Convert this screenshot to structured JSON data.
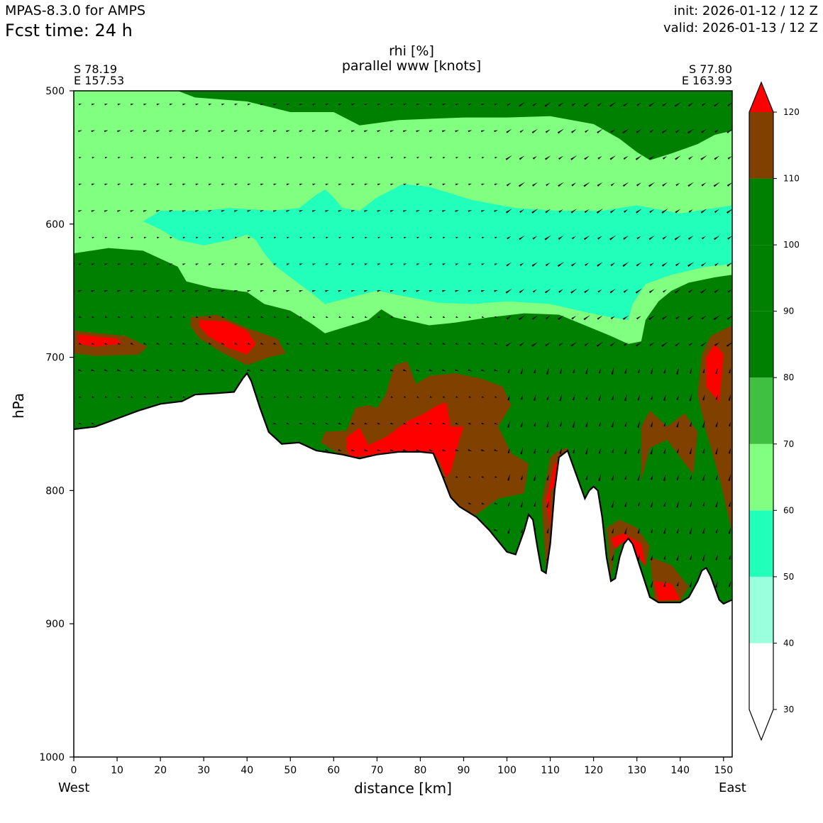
{
  "header": {
    "model": "MPAS-8.3.0 for AMPS",
    "fcst_time": "Fcst time:   24 h",
    "init": "init: 2026-01-12 / 12 Z",
    "valid": "valid: 2026-01-13 / 12 Z"
  },
  "locations": {
    "left_lat": "S 78.19",
    "left_lon": "E 157.53",
    "right_lat": "S 77.80",
    "right_lon": "E 163.93"
  },
  "sides": {
    "west": "West",
    "east": "East"
  },
  "chart_data": {
    "type": "heatmap",
    "title": "rhi [%]",
    "subtitle": "parallel www [knots]",
    "xlabel": "distance [km]",
    "ylabel": "hPa",
    "xlim": [
      0,
      152
    ],
    "ylim": [
      1000,
      500
    ],
    "y_inverted": true,
    "x_ticks": [
      0,
      10,
      20,
      30,
      40,
      50,
      60,
      70,
      80,
      90,
      100,
      110,
      120,
      130,
      140,
      150
    ],
    "y_ticks": [
      500,
      600,
      700,
      800,
      900,
      1000
    ],
    "grid": false,
    "colorbar": {
      "levels": [
        30,
        40,
        50,
        60,
        70,
        80,
        90,
        100,
        110,
        120
      ],
      "bins": [
        {
          "range": [
            30,
            40
          ],
          "color": "#ffffff"
        },
        {
          "range": [
            40,
            50
          ],
          "color": "#99ffdd"
        },
        {
          "range": [
            50,
            60
          ],
          "color": "#22ffbb"
        },
        {
          "range": [
            60,
            70
          ],
          "color": "#80ff80"
        },
        {
          "range": [
            70,
            80
          ],
          "color": "#40c040"
        },
        {
          "range": [
            80,
            110
          ],
          "color": "#008000"
        },
        {
          "range": [
            110,
            120
          ],
          "color": "#804000"
        },
        {
          "range": [
            120,
            130
          ],
          "color": "#ff0000"
        }
      ],
      "extend": "both"
    },
    "terrain_pressure": [
      [
        0,
        754
      ],
      [
        5,
        752
      ],
      [
        10,
        746
      ],
      [
        15,
        740
      ],
      [
        20,
        735
      ],
      [
        25,
        733
      ],
      [
        28,
        728
      ],
      [
        33,
        727
      ],
      [
        37,
        726
      ],
      [
        39,
        716
      ],
      [
        40,
        712
      ],
      [
        41,
        718
      ],
      [
        43,
        738
      ],
      [
        45,
        756
      ],
      [
        48,
        765
      ],
      [
        52,
        764
      ],
      [
        56,
        770
      ],
      [
        62,
        773
      ],
      [
        66,
        776
      ],
      [
        70,
        773
      ],
      [
        75,
        771
      ],
      [
        80,
        771
      ],
      [
        83,
        772
      ],
      [
        85,
        788
      ],
      [
        87,
        805
      ],
      [
        89,
        812
      ],
      [
        93,
        820
      ],
      [
        96,
        830
      ],
      [
        100,
        846
      ],
      [
        102,
        848
      ],
      [
        104,
        830
      ],
      [
        105,
        818
      ],
      [
        106,
        822
      ],
      [
        107,
        842
      ],
      [
        108,
        860
      ],
      [
        109,
        862
      ],
      [
        110,
        840
      ],
      [
        111,
        800
      ],
      [
        112,
        775
      ],
      [
        114,
        770
      ],
      [
        116,
        788
      ],
      [
        118,
        806
      ],
      [
        119,
        800
      ],
      [
        120,
        797
      ],
      [
        121,
        800
      ],
      [
        122,
        820
      ],
      [
        123,
        850
      ],
      [
        124,
        868
      ],
      [
        125,
        866
      ],
      [
        126,
        850
      ],
      [
        127,
        840
      ],
      [
        128,
        836
      ],
      [
        129,
        840
      ],
      [
        131,
        860
      ],
      [
        133,
        880
      ],
      [
        135,
        884
      ],
      [
        140,
        884
      ],
      [
        142,
        880
      ],
      [
        144,
        868
      ],
      [
        145,
        860
      ],
      [
        146,
        858
      ],
      [
        147,
        864
      ],
      [
        149,
        882
      ],
      [
        150,
        885
      ],
      [
        152,
        882
      ]
    ],
    "rhi_regions": [
      {
        "value": 60,
        "points": [
          [
            0,
            500
          ],
          [
            24,
            500
          ],
          [
            28,
            505
          ],
          [
            40,
            508
          ],
          [
            50,
            516
          ],
          [
            60,
            516
          ],
          [
            66,
            526
          ],
          [
            75,
            522
          ],
          [
            90,
            520
          ],
          [
            100,
            520
          ],
          [
            110,
            519
          ],
          [
            120,
            525
          ],
          [
            126,
            536
          ],
          [
            130,
            546
          ],
          [
            133,
            552
          ],
          [
            138,
            547
          ],
          [
            144,
            540
          ],
          [
            148,
            533
          ],
          [
            152,
            530
          ],
          [
            152,
            638
          ],
          [
            148,
            640
          ],
          [
            142,
            644
          ],
          [
            138,
            650
          ],
          [
            135,
            658
          ],
          [
            132,
            672
          ],
          [
            131,
            688
          ],
          [
            128,
            690
          ],
          [
            124,
            684
          ],
          [
            118,
            676
          ],
          [
            112,
            668
          ],
          [
            104,
            667
          ],
          [
            96,
            670
          ],
          [
            88,
            674
          ],
          [
            82,
            676
          ],
          [
            74,
            670
          ],
          [
            71,
            664
          ],
          [
            68,
            672
          ],
          [
            62,
            678
          ],
          [
            58,
            682
          ],
          [
            55,
            675
          ],
          [
            50,
            665
          ],
          [
            44,
            660
          ],
          [
            40,
            651
          ],
          [
            32,
            648
          ],
          [
            26,
            643
          ],
          [
            24,
            632
          ],
          [
            16,
            620
          ],
          [
            8,
            618
          ],
          [
            0,
            622
          ]
        ]
      },
      {
        "value": 50,
        "points": [
          [
            16,
            598
          ],
          [
            20,
            590
          ],
          [
            30,
            590
          ],
          [
            36,
            588
          ],
          [
            46,
            590
          ],
          [
            52,
            588
          ],
          [
            56,
            578
          ],
          [
            58,
            574
          ],
          [
            60,
            580
          ],
          [
            62,
            588
          ],
          [
            66,
            590
          ],
          [
            70,
            580
          ],
          [
            76,
            570
          ],
          [
            82,
            572
          ],
          [
            92,
            582
          ],
          [
            102,
            588
          ],
          [
            112,
            590
          ],
          [
            122,
            590
          ],
          [
            130,
            586
          ],
          [
            140,
            592
          ],
          [
            148,
            588
          ],
          [
            152,
            586
          ],
          [
            152,
            630
          ],
          [
            146,
            632
          ],
          [
            138,
            638
          ],
          [
            132,
            645
          ],
          [
            129,
            660
          ],
          [
            128,
            672
          ],
          [
            124,
            670
          ],
          [
            118,
            666
          ],
          [
            110,
            660
          ],
          [
            100,
            658
          ],
          [
            92,
            660
          ],
          [
            84,
            659
          ],
          [
            76,
            654
          ],
          [
            70,
            650
          ],
          [
            64,
            655
          ],
          [
            58,
            660
          ],
          [
            55,
            652
          ],
          [
            50,
            640
          ],
          [
            46,
            630
          ],
          [
            44,
            622
          ],
          [
            42,
            612
          ],
          [
            40,
            608
          ],
          [
            36,
            612
          ],
          [
            30,
            616
          ],
          [
            24,
            612
          ],
          [
            20,
            604
          ]
        ]
      },
      {
        "value": 110,
        "points": [
          [
            0,
            680
          ],
          [
            12,
            684
          ],
          [
            17,
            692
          ],
          [
            15,
            698
          ],
          [
            5,
            699
          ],
          [
            0,
            697
          ]
        ]
      },
      {
        "value": 120,
        "points": [
          [
            1,
            683
          ],
          [
            10,
            686
          ],
          [
            11,
            690
          ],
          [
            5,
            692
          ],
          [
            1,
            690
          ]
        ]
      },
      {
        "value": 110,
        "points": [
          [
            27,
            670
          ],
          [
            33,
            668
          ],
          [
            40,
            678
          ],
          [
            47,
            686
          ],
          [
            49,
            697
          ],
          [
            45,
            700
          ],
          [
            40,
            706
          ],
          [
            34,
            696
          ],
          [
            29,
            686
          ],
          [
            27,
            677
          ]
        ]
      },
      {
        "value": 120,
        "points": [
          [
            29,
            672
          ],
          [
            35,
            673
          ],
          [
            40,
            680
          ],
          [
            42,
            690
          ],
          [
            40,
            698
          ],
          [
            35,
            692
          ],
          [
            31,
            684
          ],
          [
            29,
            677
          ]
        ]
      },
      {
        "value": 110,
        "points": [
          [
            58,
            756
          ],
          [
            63,
            755
          ],
          [
            65,
            738
          ],
          [
            68,
            736
          ],
          [
            70,
            738
          ],
          [
            72,
            728
          ],
          [
            74,
            706
          ],
          [
            77,
            703
          ],
          [
            79,
            720
          ],
          [
            82,
            714
          ],
          [
            88,
            712
          ],
          [
            94,
            716
          ],
          [
            99,
            722
          ],
          [
            101,
            736
          ],
          [
            98,
            752
          ],
          [
            101,
            772
          ],
          [
            105,
            780
          ],
          [
            104,
            802
          ],
          [
            98,
            806
          ],
          [
            93,
            818
          ],
          [
            88,
            818
          ],
          [
            86,
            805
          ],
          [
            84,
            792
          ],
          [
            82,
            772
          ],
          [
            80,
            772
          ],
          [
            72,
            772
          ],
          [
            64,
            776
          ],
          [
            60,
            770
          ],
          [
            57,
            764
          ]
        ]
      },
      {
        "value": 120,
        "points": [
          [
            63,
            760
          ],
          [
            66,
            753
          ],
          [
            68,
            766
          ],
          [
            72,
            760
          ],
          [
            77,
            748
          ],
          [
            81,
            742
          ],
          [
            84,
            736
          ],
          [
            86,
            734
          ],
          [
            87,
            752
          ],
          [
            90,
            752
          ],
          [
            89,
            762
          ],
          [
            87,
            786
          ],
          [
            86,
            790
          ],
          [
            84,
            775
          ],
          [
            80,
            773
          ],
          [
            70,
            773
          ],
          [
            64,
            775
          ],
          [
            63,
            769
          ]
        ]
      },
      {
        "value": 110,
        "points": [
          [
            108,
            808
          ],
          [
            110,
            775
          ],
          [
            112,
            770
          ],
          [
            114,
            768
          ],
          [
            116,
            790
          ],
          [
            111,
            798
          ],
          [
            110,
            838
          ],
          [
            109,
            858
          ]
        ]
      },
      {
        "value": 120,
        "points": [
          [
            109,
            808
          ],
          [
            111,
            780
          ],
          [
            112,
            778
          ],
          [
            113,
            790
          ],
          [
            110,
            800
          ],
          [
            110,
            828
          ]
        ]
      },
      {
        "value": 110,
        "points": [
          [
            123,
            828
          ],
          [
            126,
            822
          ],
          [
            130,
            828
          ],
          [
            133,
            842
          ],
          [
            132,
            858
          ],
          [
            128,
            838
          ],
          [
            125,
            842
          ],
          [
            124,
            865
          ]
        ]
      },
      {
        "value": 120,
        "points": [
          [
            124,
            836
          ],
          [
            127,
            832
          ],
          [
            131,
            840
          ],
          [
            132,
            856
          ],
          [
            129,
            846
          ],
          [
            127,
            838
          ],
          [
            125,
            844
          ]
        ]
      },
      {
        "value": 110,
        "points": [
          [
            133,
            850
          ],
          [
            138,
            856
          ],
          [
            142,
            872
          ],
          [
            140,
            883
          ],
          [
            134,
            883
          ]
        ]
      },
      {
        "value": 120,
        "points": [
          [
            134,
            868
          ],
          [
            138,
            870
          ],
          [
            140,
            882
          ],
          [
            135,
            883
          ]
        ]
      },
      {
        "value": 110,
        "points": [
          [
            131,
            752
          ],
          [
            133,
            740
          ],
          [
            137,
            752
          ],
          [
            141,
            742
          ],
          [
            144,
            756
          ],
          [
            143,
            788
          ],
          [
            137,
            762
          ],
          [
            133,
            768
          ],
          [
            131,
            792
          ]
        ]
      },
      {
        "value": 110,
        "points": [
          [
            145,
            698
          ],
          [
            147,
            684
          ],
          [
            152,
            676
          ],
          [
            152,
            832
          ],
          [
            149,
            790
          ],
          [
            146,
            756
          ],
          [
            144,
            728
          ]
        ]
      },
      {
        "value": 120,
        "points": [
          [
            146,
            700
          ],
          [
            148,
            690
          ],
          [
            150,
            698
          ],
          [
            149,
            734
          ],
          [
            146,
            722
          ]
        ]
      }
    ],
    "wind_arrow_levels_hPa": [
      510,
      530,
      550,
      570,
      590,
      610,
      630,
      650,
      670,
      690,
      710,
      730,
      750,
      770,
      790,
      810,
      830,
      850,
      870
    ],
    "wind_arrow_spacing_km": 3
  }
}
